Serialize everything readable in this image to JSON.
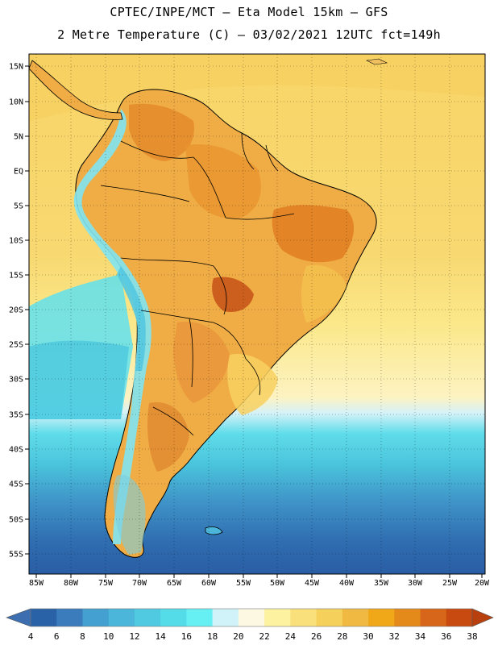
{
  "header": {
    "line1": "CPTEC/INPE/MCT –  Eta Model 15km – GFS",
    "line2": "2 Metre Temperature (C) – 03/02/2021 12UTC fct=149h"
  },
  "axes": {
    "lat_labels": [
      "15N",
      "10N",
      "5N",
      "EQ",
      "5S",
      "10S",
      "15S",
      "20S",
      "25S",
      "30S",
      "35S",
      "40S",
      "45S",
      "50S",
      "55S"
    ],
    "lon_labels": [
      "85W",
      "80W",
      "75W",
      "70W",
      "65W",
      "60W",
      "55W",
      "50W",
      "45W",
      "40W",
      "35W",
      "30W",
      "25W",
      "20W"
    ]
  },
  "colorbar": {
    "labels": [
      "4",
      "6",
      "8",
      "10",
      "12",
      "14",
      "16",
      "18",
      "20",
      "22",
      "24",
      "26",
      "28",
      "30",
      "32",
      "34",
      "36",
      "38"
    ],
    "colors": [
      "#2a62a8",
      "#3a7cbc",
      "#44a0d0",
      "#4bb6da",
      "#4fcae0",
      "#54dde8",
      "#66f0f4",
      "#cff3f8",
      "#fdf8e2",
      "#fdf2a0",
      "#fae07a",
      "#f5d05a",
      "#f0ba42",
      "#f0a818",
      "#e48a1a",
      "#d8661a",
      "#c84a10"
    ],
    "low_color": "#3c6eb0",
    "high_color": "#b8400e"
  }
}
